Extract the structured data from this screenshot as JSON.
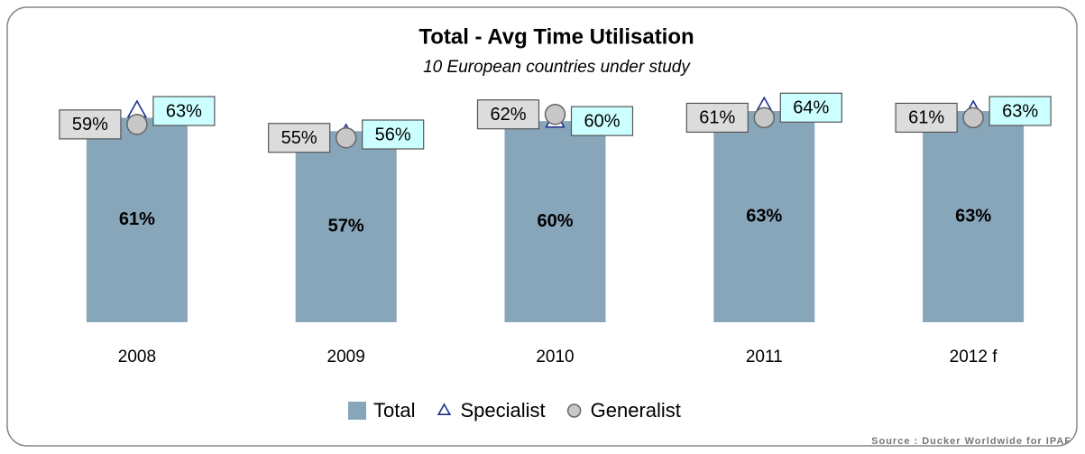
{
  "chart_data": {
    "type": "bar",
    "title": "Total - Avg Time Utilisation",
    "subtitle": "10 European countries under study",
    "source": "Source : Ducker Worldwide for IPAF",
    "categories": [
      "2008",
      "2009",
      "2010",
      "2011",
      "2012 f"
    ],
    "ylim": [
      0,
      70
    ],
    "series": [
      {
        "name": "Total",
        "color": "#87a6ba",
        "marker": "bar",
        "values": [
          61,
          57,
          60,
          63,
          63
        ],
        "value_labels": [
          "61%",
          "57%",
          "60%",
          "63%",
          "63%"
        ]
      },
      {
        "name": "Specialist",
        "color": "#1f2f8f",
        "marker": "triangle",
        "values": [
          63,
          56,
          60,
          64,
          63
        ],
        "value_labels": [
          "63%",
          "56%",
          "60%",
          "64%",
          "63%"
        ]
      },
      {
        "name": "Generalist",
        "color": "#c8c8c8",
        "marker": "circle",
        "values": [
          59,
          55,
          62,
          61,
          61
        ],
        "value_labels": [
          "59%",
          "55%",
          "62%",
          "61%",
          "61%"
        ]
      }
    ]
  }
}
